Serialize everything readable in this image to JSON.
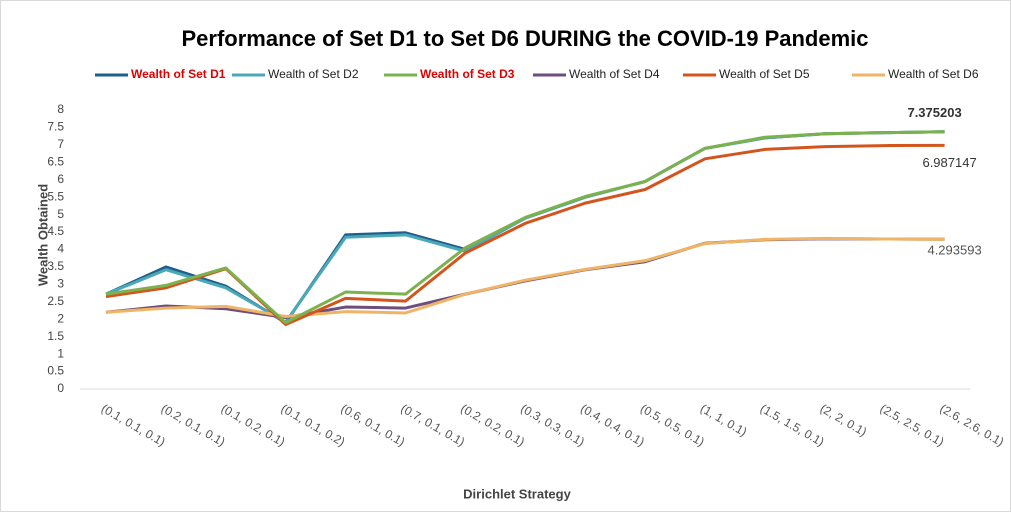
{
  "chart_data": {
    "type": "line",
    "title": "Performance of Set D1 to Set D6 DURING the COVID-19 Pandemic",
    "y_label": "Wealth Obtained",
    "x_label": "Dirichlet Strategy",
    "categories": [
      "(0.1, 0.1, 0.1)",
      "(0.2, 0.1, 0.1)",
      "(0.1, 0.2, 0.1)",
      "(0.1, 0.1, 0.2)",
      "(0.6, 0.1, 0.1)",
      "(0.7, 0.1, 0.1)",
      "(0.2, 0.2, 0.1)",
      "(0.3, 0.3, 0.1)",
      "(0.4, 0.4, 0.1)",
      "(0.5, 0.5, 0.1)",
      "(1, 1, 0.1)",
      "(1.5, 1.5, 0.1)",
      "(2, 2, 0.1)",
      "(2.5, 2.5, 0.1)",
      "(2.6, 2.6, 0.1)"
    ],
    "series": [
      {
        "name": "Wealth of Set D1",
        "color": "#1f5f8b",
        "label_color": "#e00000",
        "label_bold": true,
        "values": [
          2.72,
          3.5,
          2.95,
          1.9,
          4.42,
          4.48,
          4.0,
          4.9,
          5.5,
          5.95,
          6.9,
          7.2,
          7.32,
          7.35,
          7.375203
        ]
      },
      {
        "name": "Wealth of Set D2",
        "color": "#4aa8b8",
        "label_color": "#222222",
        "label_bold": false,
        "values": [
          2.72,
          3.42,
          2.9,
          1.92,
          4.35,
          4.42,
          3.95,
          4.9,
          5.5,
          5.95,
          6.9,
          7.2,
          7.32,
          7.35,
          7.375203
        ]
      },
      {
        "name": "Wealth of Set D3",
        "color": "#7cb24e",
        "label_color": "#e00000",
        "label_bold": true,
        "values": [
          2.72,
          2.97,
          3.47,
          1.9,
          2.78,
          2.72,
          4.05,
          4.92,
          5.52,
          5.95,
          6.9,
          7.22,
          7.32,
          7.35,
          7.375203
        ]
      },
      {
        "name": "Wealth of Set D4",
        "color": "#6e4f7c",
        "label_color": "#222222",
        "label_bold": false,
        "values": [
          2.2,
          2.38,
          2.3,
          2.05,
          2.35,
          2.32,
          2.72,
          3.1,
          3.42,
          3.65,
          4.18,
          4.28,
          4.31,
          4.3,
          4.293593
        ]
      },
      {
        "name": "Wealth of Set D5",
        "color": "#d4541e",
        "label_color": "#222222",
        "label_bold": false,
        "values": [
          2.65,
          2.9,
          3.45,
          1.85,
          2.6,
          2.52,
          3.9,
          4.75,
          5.33,
          5.72,
          6.6,
          6.87,
          6.95,
          6.98,
          6.987147
        ]
      },
      {
        "name": "Wealth of Set D6",
        "color": "#f0b466",
        "label_color": "#222222",
        "label_bold": false,
        "values": [
          2.2,
          2.32,
          2.37,
          2.08,
          2.22,
          2.18,
          2.72,
          3.12,
          3.43,
          3.68,
          4.17,
          4.29,
          4.32,
          4.3,
          4.293593
        ]
      }
    ],
    "ylim": [
      0,
      8
    ],
    "yticks": [
      0,
      0.5,
      1,
      1.5,
      2,
      2.5,
      3,
      3.5,
      4,
      4.5,
      5,
      5.5,
      6,
      6.5,
      7,
      7.5,
      8
    ],
    "grid": false
  }
}
